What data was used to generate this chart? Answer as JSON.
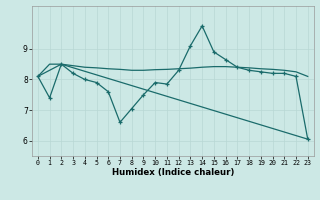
{
  "xlabel": "Humidex (Indice chaleur)",
  "xlim": [
    -0.5,
    23.5
  ],
  "ylim": [
    5.5,
    10.4
  ],
  "yticks": [
    6,
    7,
    8,
    9
  ],
  "xticks": [
    0,
    1,
    2,
    3,
    4,
    5,
    6,
    7,
    8,
    9,
    10,
    11,
    12,
    13,
    14,
    15,
    16,
    17,
    18,
    19,
    20,
    21,
    22,
    23
  ],
  "bg_color": "#cce8e5",
  "line_color": "#1a6b6b",
  "grid_color": "#b8d8d4",
  "series0_x": [
    0,
    1,
    2,
    3,
    4,
    5,
    6,
    7,
    8,
    9,
    10,
    11,
    12,
    13,
    14,
    15,
    16,
    17,
    18,
    19,
    20,
    21,
    22,
    23
  ],
  "series0_y": [
    8.1,
    7.4,
    8.5,
    8.2,
    8.0,
    7.9,
    7.6,
    6.6,
    7.05,
    7.5,
    7.9,
    7.85,
    8.3,
    9.1,
    9.75,
    8.9,
    8.65,
    8.4,
    8.3,
    8.25,
    8.2,
    8.2,
    8.1,
    6.05
  ],
  "series1_x": [
    0,
    1,
    2,
    3,
    4,
    5,
    6,
    7,
    8,
    9,
    10,
    11,
    12,
    13,
    14,
    15,
    16,
    17,
    18,
    19,
    20,
    21,
    22,
    23
  ],
  "series1_y": [
    8.1,
    8.5,
    8.5,
    8.45,
    8.4,
    8.38,
    8.35,
    8.33,
    8.3,
    8.3,
    8.32,
    8.33,
    8.35,
    8.37,
    8.4,
    8.42,
    8.42,
    8.4,
    8.38,
    8.35,
    8.33,
    8.3,
    8.25,
    8.1
  ],
  "series2_x": [
    0,
    2,
    23
  ],
  "series2_y": [
    8.1,
    8.5,
    6.05
  ]
}
